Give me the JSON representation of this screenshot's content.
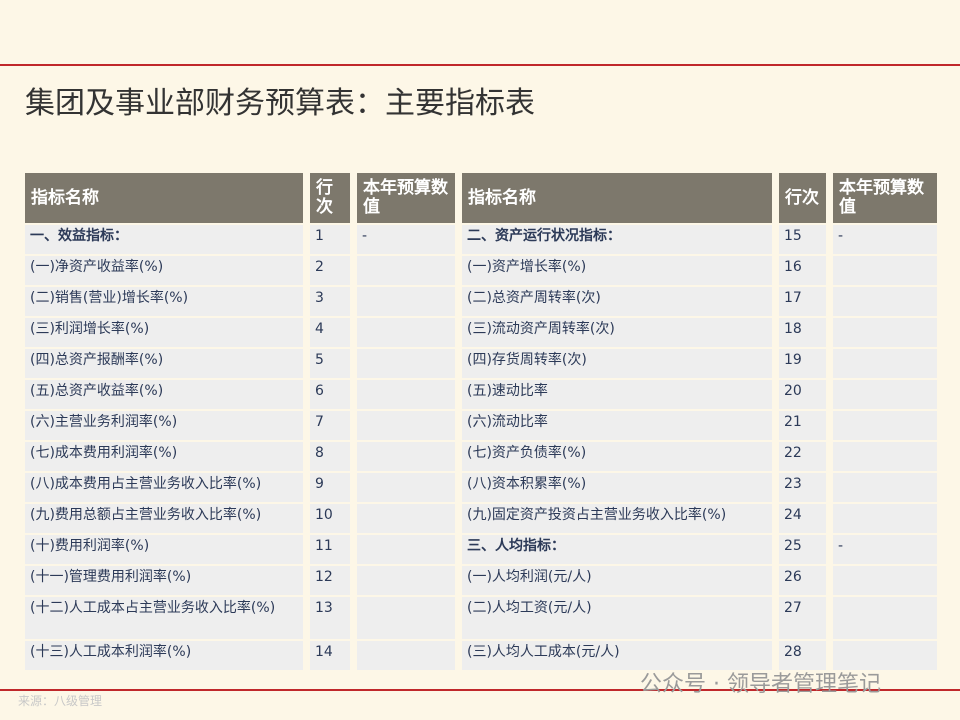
{
  "title": "集团及事业部财务预算表：主要指标表",
  "table": {
    "header": [
      "指标名称",
      "行次",
      "本年预算数值",
      "指标名称",
      "行次",
      "本年预算数值"
    ],
    "rows": [
      [
        "一、效益指标：",
        "1",
        "-",
        "二、资产运行状况指标：",
        "15",
        "-"
      ],
      [
        "(一)净资产收益率(%)",
        "2",
        null,
        "(一)资产增长率(%)",
        "16",
        null
      ],
      [
        "(二)销售(营业)增长率(%)",
        "3",
        null,
        "(二)总资产周转率(次)",
        "17",
        null
      ],
      [
        "(三)利润增长率(%)",
        "4",
        null,
        "(三)流动资产周转率(次)",
        "18",
        null
      ],
      [
        "(四)总资产报酬率(%)",
        "5",
        null,
        "(四)存货周转率(次)",
        "19",
        null
      ],
      [
        "(五)总资产收益率(%)",
        "6",
        null,
        "(五)速动比率",
        "20",
        null
      ],
      [
        "(六)主营业务利润率(%)",
        "7",
        null,
        "(六)流动比率",
        "21",
        null
      ],
      [
        "(七)成本费用利润率(%)",
        "8",
        null,
        "(七)资产负债率(%)",
        "22",
        null
      ],
      [
        "(八)成本费用占主营业务收入比率(%)",
        "9",
        null,
        "(八)资本积累率(%)",
        "23",
        null
      ],
      [
        "(九)费用总额占主营业务收入比率(%)",
        "10",
        null,
        "(九)固定资产投资占主营业务收入比率(%)",
        "24",
        null
      ],
      [
        "(十)费用利润率(%)",
        "11",
        null,
        "三、人均指标：",
        "25",
        "-"
      ],
      [
        "(十一)管理费用利润率(%)",
        "12",
        null,
        "(一)人均利润(元/人)",
        "26",
        null
      ],
      [
        "(十二)人工成本占主营业务收入比率(%)",
        "13",
        null,
        "(二)人均工资(元/人)",
        "27",
        null
      ],
      [
        "(十三)人工成本利润率(%)",
        "14",
        null,
        "(三)人均人工成本(元/人)",
        "28",
        null
      ]
    ]
  },
  "watermark": "公众号 · 领导者管理笔记",
  "source": "来源：八级管理"
}
